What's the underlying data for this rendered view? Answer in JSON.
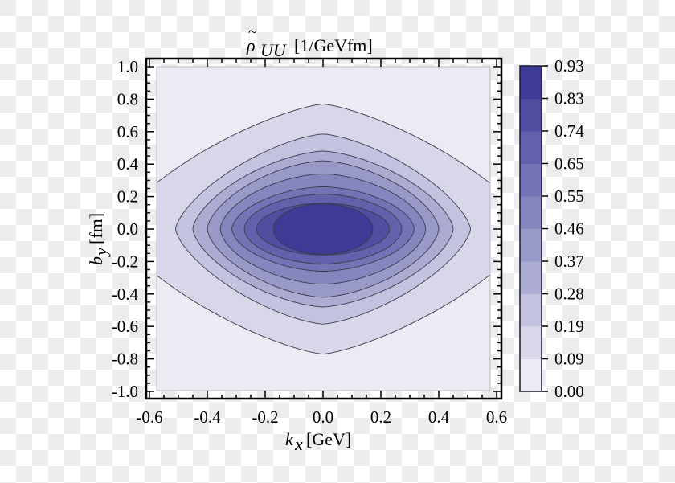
{
  "chart_data": {
    "type": "contour",
    "title": "ρ̃_UU [1/GeVfm]",
    "title_parts": {
      "symbol": "ρ",
      "subscript": "UU",
      "unit": "[1/GeVfm]"
    },
    "xlabel": "k_x [GeV]",
    "xlabel_parts": {
      "symbol": "k",
      "subscript": "x",
      "unit": "[GeV]"
    },
    "ylabel": "b_y [fm]",
    "ylabel_parts": {
      "symbol": "b",
      "subscript": "y",
      "unit": "[fm]"
    },
    "xlim": [
      -0.6,
      0.6
    ],
    "ylim": [
      -1.0,
      1.0
    ],
    "x_ticks": [
      "-0.6",
      "-0.4",
      "-0.2",
      "0.0",
      "0.2",
      "0.4",
      "0.6"
    ],
    "y_ticks": [
      "1.0",
      "0.8",
      "0.6",
      "0.4",
      "0.2",
      "0.0",
      "-0.2",
      "-0.4",
      "-0.6",
      "-0.8",
      "-1.0"
    ],
    "colorbar": {
      "levels": [
        "0.00",
        "0.09",
        "0.19",
        "0.28",
        "0.37",
        "0.46",
        "0.55",
        "0.65",
        "0.74",
        "0.83",
        "0.93"
      ],
      "colors": [
        "#ebebf4",
        "#d7d7e9",
        "#c3c3df",
        "#acacd3",
        "#9999c8",
        "#8686bf",
        "#7473b5",
        "#6261ab",
        "#504ea1",
        "#3e3b97"
      ]
    },
    "contours": [
      {
        "level": "0.09",
        "half_width_kx": 0.72,
        "half_height_by": 0.77,
        "shape_exp": 1.35
      },
      {
        "level": "0.19",
        "half_width_kx": 0.51,
        "half_height_by": 0.585,
        "shape_exp": 1.45
      },
      {
        "level": "0.28",
        "half_width_kx": 0.45,
        "half_height_by": 0.48,
        "shape_exp": 1.55
      },
      {
        "level": "0.37",
        "half_width_kx": 0.4,
        "half_height_by": 0.42,
        "shape_exp": 1.6
      },
      {
        "level": "0.46",
        "half_width_kx": 0.355,
        "half_height_by": 0.34,
        "shape_exp": 1.7
      },
      {
        "level": "0.55",
        "half_width_kx": 0.315,
        "half_height_by": 0.26,
        "shape_exp": 1.75
      },
      {
        "level": "0.65",
        "half_width_kx": 0.272,
        "half_height_by": 0.215,
        "shape_exp": 1.85
      },
      {
        "level": "0.74",
        "half_width_kx": 0.23,
        "half_height_by": 0.16,
        "shape_exp": 1.9
      },
      {
        "level": "0.83",
        "half_width_kx": 0.172,
        "half_height_by": 0.155,
        "shape_exp": 2.0
      }
    ],
    "grid": false,
    "legend": "colorbar-right"
  }
}
